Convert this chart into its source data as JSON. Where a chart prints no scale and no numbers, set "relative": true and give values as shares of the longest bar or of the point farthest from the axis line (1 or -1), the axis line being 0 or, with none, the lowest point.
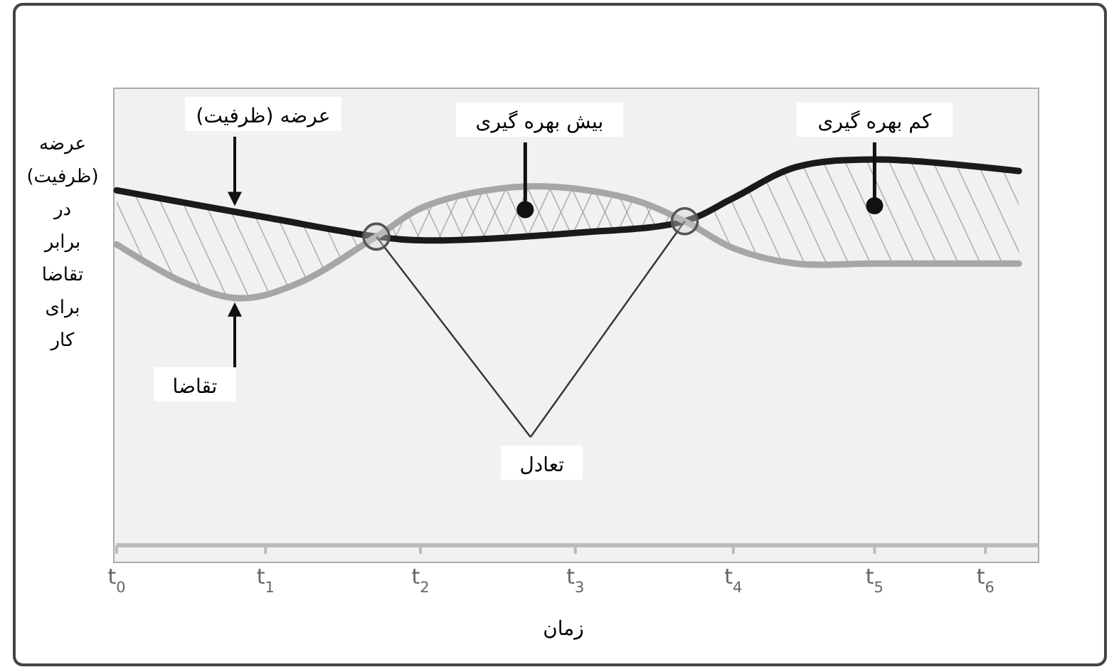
{
  "chart_data": {
    "type": "line",
    "relative": true,
    "xlabel": "زمان",
    "ylabel": "عرضه (ظرفیت) در برابر تقاضا برای کار",
    "xlim": [
      0,
      6.07
    ],
    "xticks": [
      {
        "value": 0,
        "label": "t$_{0}$"
      },
      {
        "value": 0.98,
        "label": "t$_{1}$"
      },
      {
        "value": 2.0,
        "label": "t$_{2}$"
      },
      {
        "value": 3.02,
        "label": "t$_{3}$"
      },
      {
        "value": 4.06,
        "label": "t$_{4}$"
      },
      {
        "value": 4.99,
        "label": "t$_{5}$"
      },
      {
        "value": 5.72,
        "label": "t$_{6}$"
      }
    ],
    "series": [
      {
        "color": "#1a1a1a",
        "x": [
          0,
          0.98,
          1.71,
          2.04,
          3.03,
          3.74,
          4.06,
          4.47,
          4.99,
          5.94
        ],
        "values": [
          0.92,
          0.85,
          0.8,
          0.79,
          0.81,
          0.84,
          0.9,
          0.98,
          1.0,
          0.97
        ]
      },
      {
        "color": "#a6a6a6",
        "x": [
          0,
          0.45,
          0.82,
          1.2,
          1.71,
          2.04,
          2.69,
          3.36,
          3.74,
          4.06,
          4.47,
          4.99,
          5.94
        ],
        "values": [
          0.78,
          0.68,
          0.64,
          0.68,
          0.8,
          0.88,
          0.93,
          0.9,
          0.84,
          0.77,
          0.73,
          0.73,
          0.73
        ]
      }
    ],
    "annotations": [
      "عرضه (ظرفیت)",
      "تقاضا",
      {
        "text": "بیش بهره گیری",
        "x": 2.69,
        "y": 0.87
      },
      {
        "text": "کم بهره گیری",
        "x": 4.99,
        "y": 0.88
      },
      {
        "text": "تعادل",
        "x": 1.71,
        "y": 0.8
      }
    ],
    "grid": false,
    "marker": "none",
    "line_style": "solid"
  }
}
